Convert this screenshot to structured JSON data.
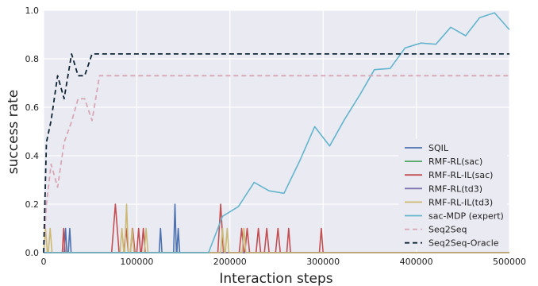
{
  "chart_data": {
    "type": "line",
    "title": "",
    "xlabel": "Interaction steps",
    "ylabel": "success rate",
    "xlim": [
      0,
      500000
    ],
    "ylim": [
      0,
      1.0
    ],
    "xticks": [
      0,
      100000,
      200000,
      300000,
      400000,
      500000
    ],
    "xtick_labels": [
      "0",
      "100000",
      "200000",
      "300000",
      "400000",
      "500000"
    ],
    "yticks": [
      0.0,
      0.2,
      0.4,
      0.6,
      0.8,
      1.0
    ],
    "ytick_labels": [
      "0.0",
      "0.2",
      "0.4",
      "0.6",
      "0.8",
      "1.0"
    ],
    "grid": true,
    "legend_position": "bottom-right",
    "series": [
      {
        "name": "SQIL",
        "color": "#4c72b0",
        "dashed": false,
        "points": [
          [
            0,
            0
          ],
          [
            22000,
            0
          ],
          [
            23500,
            0.1
          ],
          [
            25000,
            0
          ],
          [
            26500,
            0
          ],
          [
            28000,
            0.1
          ],
          [
            29500,
            0
          ],
          [
            124000,
            0
          ],
          [
            125500,
            0.1
          ],
          [
            127000,
            0
          ],
          [
            139500,
            0
          ],
          [
            141000,
            0.2
          ],
          [
            142500,
            0
          ],
          [
            143000,
            0
          ],
          [
            144500,
            0.1
          ],
          [
            146000,
            0
          ],
          [
            500000,
            0
          ]
        ]
      },
      {
        "name": "RMF-RL(sac)",
        "color": "#55a868",
        "dashed": false,
        "points": [
          [
            0,
            0
          ],
          [
            500000,
            0
          ]
        ]
      },
      {
        "name": "RMF-RL-IL(sac)",
        "color": "#c44e52",
        "dashed": false,
        "points": [
          [
            0,
            0
          ],
          [
            20000,
            0
          ],
          [
            21500,
            0.1
          ],
          [
            23000,
            0
          ],
          [
            73000,
            0
          ],
          [
            77000,
            0.2
          ],
          [
            81000,
            0
          ],
          [
            86000,
            0
          ],
          [
            88500,
            0.1
          ],
          [
            91000,
            0
          ],
          [
            93000,
            0
          ],
          [
            95500,
            0.1
          ],
          [
            98000,
            0
          ],
          [
            100000,
            0
          ],
          [
            102000,
            0.1
          ],
          [
            104000,
            0
          ],
          [
            105000,
            0
          ],
          [
            107000,
            0.1
          ],
          [
            109000,
            0
          ],
          [
            187000,
            0
          ],
          [
            190000,
            0.2
          ],
          [
            193000,
            0
          ],
          [
            210000,
            0
          ],
          [
            212500,
            0.1
          ],
          [
            215000,
            0
          ],
          [
            216000,
            0
          ],
          [
            218500,
            0.1
          ],
          [
            221000,
            0
          ],
          [
            228000,
            0
          ],
          [
            230500,
            0.1
          ],
          [
            233000,
            0
          ],
          [
            237000,
            0
          ],
          [
            239500,
            0.1
          ],
          [
            242000,
            0
          ],
          [
            249000,
            0
          ],
          [
            251500,
            0.1
          ],
          [
            254000,
            0
          ],
          [
            261000,
            0
          ],
          [
            263000,
            0.1
          ],
          [
            265000,
            0
          ],
          [
            296000,
            0
          ],
          [
            298000,
            0.1
          ],
          [
            300000,
            0
          ],
          [
            500000,
            0
          ]
        ]
      },
      {
        "name": "RMF-RL(td3)",
        "color": "#8172b2",
        "dashed": false,
        "points": [
          [
            0,
            0
          ],
          [
            500000,
            0
          ]
        ]
      },
      {
        "name": "RMF-RL-IL(td3)",
        "color": "#ccb974",
        "dashed": false,
        "points": [
          [
            0,
            0
          ],
          [
            2000,
            0.1
          ],
          [
            4000,
            0
          ],
          [
            5000,
            0
          ],
          [
            7000,
            0.1
          ],
          [
            9000,
            0
          ],
          [
            82000,
            0
          ],
          [
            84000,
            0.1
          ],
          [
            86000,
            0
          ],
          [
            87000,
            0
          ],
          [
            89000,
            0.2
          ],
          [
            91000,
            0
          ],
          [
            93000,
            0
          ],
          [
            95000,
            0.1
          ],
          [
            97000,
            0
          ],
          [
            108000,
            0
          ],
          [
            110000,
            0.1
          ],
          [
            112000,
            0
          ],
          [
            190000,
            0
          ],
          [
            192000,
            0.1
          ],
          [
            194000,
            0
          ],
          [
            195000,
            0
          ],
          [
            197000,
            0.1
          ],
          [
            199000,
            0
          ],
          [
            213000,
            0
          ],
          [
            215000,
            0.1
          ],
          [
            217000,
            0
          ],
          [
            500000,
            0
          ]
        ]
      },
      {
        "name": "sac-MDP (expert)",
        "color": "#64b5cd",
        "dashed": false,
        "points": [
          [
            0,
            0
          ],
          [
            177000,
            0
          ],
          [
            192000,
            0.15
          ],
          [
            209000,
            0.19
          ],
          [
            226000,
            0.29
          ],
          [
            242000,
            0.255
          ],
          [
            258000,
            0.245
          ],
          [
            275000,
            0.38
          ],
          [
            291000,
            0.52
          ],
          [
            307000,
            0.44
          ],
          [
            323000,
            0.55
          ],
          [
            340000,
            0.655
          ],
          [
            355000,
            0.755
          ],
          [
            372000,
            0.76
          ],
          [
            388000,
            0.845
          ],
          [
            405000,
            0.865
          ],
          [
            421000,
            0.86
          ],
          [
            437000,
            0.93
          ],
          [
            453000,
            0.895
          ],
          [
            468000,
            0.97
          ],
          [
            484000,
            0.99
          ],
          [
            500000,
            0.92
          ]
        ]
      },
      {
        "name": "Seq2Seq",
        "color": "#d8a7b5",
        "dashed": true,
        "points": [
          [
            0,
            0
          ],
          [
            3000,
            0.2
          ],
          [
            8000,
            0.365
          ],
          [
            15000,
            0.27
          ],
          [
            22000,
            0.455
          ],
          [
            30000,
            0.54
          ],
          [
            37000,
            0.635
          ],
          [
            44000,
            0.635
          ],
          [
            52000,
            0.545
          ],
          [
            60000,
            0.73
          ],
          [
            500000,
            0.73
          ]
        ]
      },
      {
        "name": "Seq2Seq-Oracle",
        "color": "#0f2536",
        "dashed": true,
        "points": [
          [
            0,
            0
          ],
          [
            3000,
            0.455
          ],
          [
            8000,
            0.545
          ],
          [
            15000,
            0.73
          ],
          [
            22000,
            0.635
          ],
          [
            30000,
            0.82
          ],
          [
            37000,
            0.73
          ],
          [
            44000,
            0.73
          ],
          [
            52000,
            0.82
          ],
          [
            500000,
            0.82
          ]
        ]
      }
    ]
  }
}
